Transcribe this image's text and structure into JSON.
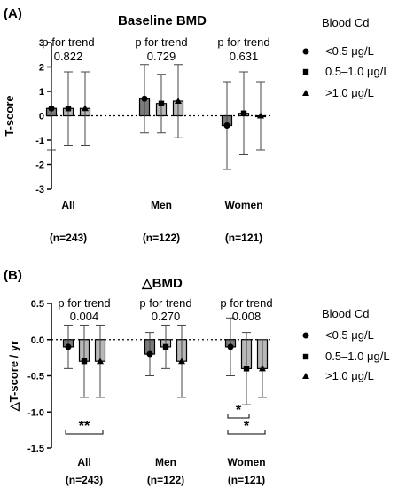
{
  "chart_data": [
    {
      "type": "bar",
      "panel_label": "(A)",
      "title": "Baseline  BMD",
      "ylabel": "T-score",
      "ylim": [
        -3,
        3
      ],
      "yticks": [
        "-3",
        "-2",
        "-1",
        "0",
        "1",
        "2",
        "3"
      ],
      "groups": [
        {
          "name": "All",
          "n": "(n=243)",
          "trend_label": "p for trend",
          "trend_value": "0.822"
        },
        {
          "name": "Men",
          "n": "(n=122)",
          "trend_label": "p for trend",
          "trend_value": "0.729"
        },
        {
          "name": "Women",
          "n": "(n=121)",
          "trend_label": "p for trend",
          "trend_value": "0.631"
        }
      ],
      "legend_title": "Blood  Cd",
      "series": [
        {
          "name": "<0.5 μg/L",
          "marker": "circle",
          "values": [
            0.3,
            0.7,
            -0.4
          ],
          "err_low": [
            -1.4,
            -0.7,
            -2.2
          ],
          "err_high": [
            2.0,
            2.1,
            1.4
          ]
        },
        {
          "name": "0.5–1.0 μg/L",
          "marker": "square",
          "values": [
            0.3,
            0.5,
            0.1
          ],
          "err_low": [
            -1.2,
            -0.7,
            -1.6
          ],
          "err_high": [
            1.8,
            1.7,
            1.8
          ]
        },
        {
          "name": ">1.0 μg/L",
          "marker": "triangle",
          "values": [
            0.3,
            0.6,
            0.0
          ],
          "err_low": [
            -1.2,
            -0.9,
            -1.4
          ],
          "err_high": [
            1.8,
            2.1,
            1.4
          ]
        }
      ],
      "significance": []
    },
    {
      "type": "bar",
      "panel_label": "(B)",
      "title": "△BMD",
      "ylabel": "△T-score / yr",
      "ylim": [
        -1.5,
        0.5
      ],
      "yticks": [
        "-1.5",
        "-1.0",
        "-0.5",
        "0.0",
        "0.5"
      ],
      "groups": [
        {
          "name": "All",
          "n": "(n=243)",
          "trend_label": "p for trend",
          "trend_value": "0.004"
        },
        {
          "name": "Men",
          "n": "(n=122)",
          "trend_label": "p for trend",
          "trend_value": "0.270"
        },
        {
          "name": "Women",
          "n": "(n=121)",
          "trend_label": "p for trend",
          "trend_value": "0.008"
        }
      ],
      "legend_title": "Blood  Cd",
      "series": [
        {
          "name": "<0.5 μg/L",
          "marker": "circle",
          "values": [
            -0.1,
            -0.2,
            -0.1
          ],
          "err_low": [
            -0.4,
            -0.5,
            -0.5
          ],
          "err_high": [
            0.2,
            0.1,
            0.3
          ]
        },
        {
          "name": "0.5–1.0 μg/L",
          "marker": "square",
          "values": [
            -0.3,
            -0.1,
            -0.4
          ],
          "err_low": [
            -0.8,
            -0.4,
            -0.9
          ],
          "err_high": [
            0.2,
            0.2,
            0.1
          ]
        },
        {
          "name": ">1.0 μg/L",
          "marker": "triangle",
          "values": [
            -0.3,
            -0.3,
            -0.4
          ],
          "err_low": [
            -0.8,
            -0.8,
            -0.8
          ],
          "err_high": [
            0.2,
            0.2,
            0.0
          ]
        }
      ],
      "significance": [
        {
          "label": "**",
          "group": 0,
          "from_series": 0,
          "to_series": 2
        },
        {
          "label": "*",
          "group": 2,
          "from_series": 0,
          "to_series": 1
        },
        {
          "label": "*",
          "group": 2,
          "from_series": 0,
          "to_series": 2
        }
      ]
    }
  ]
}
